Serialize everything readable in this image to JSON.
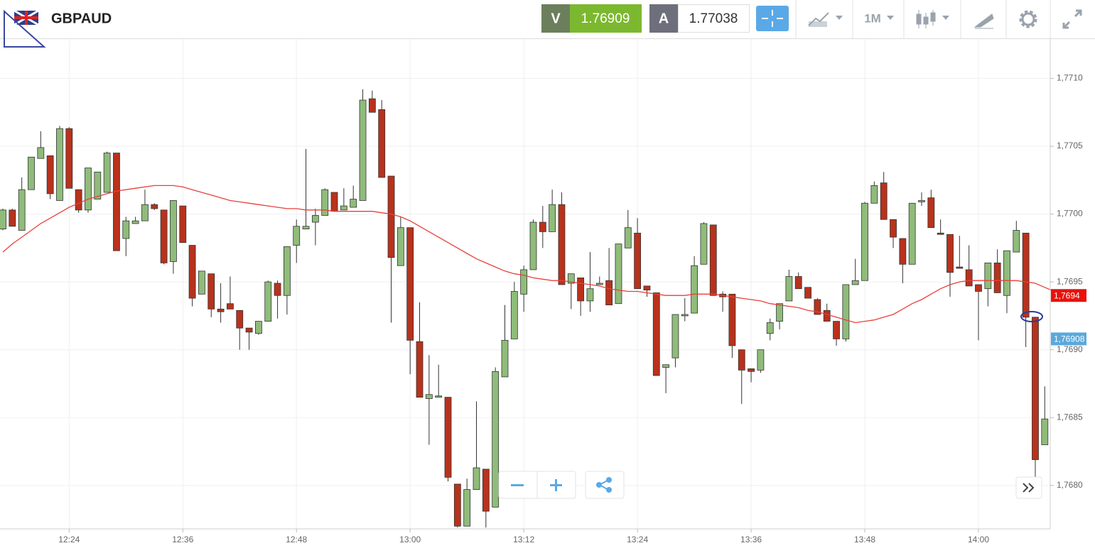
{
  "toolbar": {
    "symbol": "GBPAUD",
    "bid_label": "V",
    "bid": "1.76909",
    "ask_label": "A",
    "ask": "1.77038",
    "timeframe": "1M"
  },
  "chart_data": {
    "type": "candlestick",
    "categories": [
      null,
      null,
      null,
      null,
      null,
      null,
      null,
      "12:24",
      null,
      null,
      null,
      null,
      null,
      null,
      null,
      null,
      null,
      null,
      null,
      "12:36",
      null,
      null,
      null,
      null,
      null,
      null,
      null,
      null,
      null,
      null,
      null,
      "12:48",
      null,
      null,
      null,
      null,
      null,
      null,
      null,
      null,
      null,
      null,
      null,
      "13:00",
      null,
      null,
      null,
      null,
      null,
      null,
      null,
      null,
      null,
      null,
      null,
      "13:12",
      null,
      null,
      null,
      null,
      null,
      null,
      null,
      null,
      null,
      null,
      null,
      "13:24",
      null,
      null,
      null,
      null,
      null,
      null,
      null,
      null,
      null,
      null,
      null,
      "13:36",
      null,
      null,
      null,
      null,
      null,
      null,
      null,
      null,
      null,
      null,
      null,
      "13:48",
      null,
      null,
      null,
      null,
      null,
      null,
      null,
      null,
      null,
      null,
      null,
      "14:00",
      null,
      null,
      null,
      null,
      null,
      null,
      null
    ],
    "open": [
      1.76989,
      1.77003,
      1.76988,
      1.77018,
      1.77041,
      1.77043,
      1.7701,
      1.77063,
      1.77018,
      1.77003,
      1.77011,
      1.77016,
      1.77045,
      1.76982,
      1.76993,
      1.76995,
      1.77007,
      1.77003,
      1.76965,
      1.77006,
      1.76977,
      1.76941,
      1.76956,
      1.7693,
      1.76934,
      1.76929,
      1.76916,
      1.76912,
      1.76921,
      1.76949,
      1.7694,
      1.76977,
      1.76989,
      1.76994,
      1.76999,
      1.77016,
      1.77003,
      1.77005,
      1.7701,
      1.77085,
      1.77077,
      1.77028,
      1.76962,
      1.7699,
      1.76906,
      1.76864,
      1.76865,
      1.76865,
      1.76801,
      1.7677,
      1.76797,
      1.76812,
      1.76784,
      1.7688,
      1.76908,
      1.76941,
      1.76959,
      1.76994,
      1.76987,
      1.77007,
      1.76949,
      1.76953,
      1.76936,
      1.76948,
      1.76951,
      1.76934,
      1.76975,
      1.76986,
      1.76947,
      1.76942,
      1.76887,
      1.76894,
      1.76925,
      1.76927,
      1.76963,
      1.76992,
      1.76941,
      1.76941,
      1.769,
      1.76886,
      1.76885,
      1.76912,
      1.76921,
      1.76936,
      1.76954,
      1.76946,
      1.76937,
      1.76929,
      1.76921,
      1.76908,
      1.76948,
      1.76951,
      1.77008,
      1.77023,
      1.76996,
      1.76982,
      1.76963,
      1.77009,
      1.77012,
      1.76986,
      1.76985,
      1.76961,
      1.76959,
      1.76948,
      1.76945,
      1.76964,
      1.7694,
      1.76972,
      1.76986,
      1.76924,
      1.7683
    ],
    "high": [
      1.77004,
      1.77004,
      1.77027,
      1.77042,
      1.77061,
      1.77043,
      1.77065,
      1.77064,
      1.77018,
      1.77034,
      1.77031,
      1.77046,
      1.77045,
      1.76998,
      1.76998,
      1.77018,
      1.77008,
      1.77003,
      1.7701,
      1.77006,
      1.76977,
      1.76958,
      1.76956,
      1.76949,
      1.76954,
      1.76929,
      1.76916,
      1.76921,
      1.76951,
      1.76951,
      1.76976,
      1.76996,
      1.77048,
      1.77004,
      1.77019,
      1.77016,
      1.77019,
      1.77021,
      1.77092,
      1.77091,
      1.77084,
      1.77028,
      1.76998,
      1.7699,
      1.76935,
      1.76896,
      1.76889,
      1.76865,
      1.76801,
      1.76805,
      1.76862,
      1.76812,
      1.76887,
      1.76933,
      1.7695,
      1.76962,
      1.76996,
      1.77006,
      1.77018,
      1.77016,
      1.76956,
      1.76953,
      1.76972,
      1.76954,
      1.76975,
      1.76978,
      1.77003,
      1.76997,
      1.76947,
      1.76942,
      1.76889,
      1.76926,
      1.76938,
      1.76969,
      1.76994,
      1.76992,
      1.76943,
      1.76941,
      1.769,
      1.76886,
      1.769,
      1.76923,
      1.76934,
      1.76959,
      1.76957,
      1.76946,
      1.76938,
      1.76934,
      1.76921,
      1.76948,
      1.76967,
      1.77009,
      1.77024,
      1.77031,
      1.76996,
      1.76982,
      1.77008,
      1.77016,
      1.77018,
      1.76996,
      1.76985,
      1.76984,
      1.76977,
      1.76948,
      1.76964,
      1.76974,
      1.76973,
      1.76995,
      1.76986,
      1.76924,
      1.76873
    ],
    "low": [
      1.76988,
      1.76991,
      1.76988,
      1.77018,
      1.77041,
      1.77011,
      1.7701,
      1.77019,
      1.77001,
      1.77001,
      1.77011,
      1.77016,
      1.76973,
      1.76969,
      1.76993,
      1.76995,
      1.77003,
      1.76963,
      1.76956,
      1.76979,
      1.76932,
      1.76941,
      1.76924,
      1.7692,
      1.7693,
      1.769,
      1.769,
      1.76911,
      1.76921,
      1.76923,
      1.76926,
      1.76964,
      1.76989,
      1.76977,
      1.76999,
      1.77002,
      1.77003,
      1.77005,
      1.7701,
      1.77075,
      1.77027,
      1.7692,
      1.76962,
      1.76882,
      1.76865,
      1.7683,
      1.76865,
      1.76803,
      1.76769,
      1.7677,
      1.76797,
      1.76769,
      1.76784,
      1.7688,
      1.76908,
      1.76928,
      1.76959,
      1.76975,
      1.76987,
      1.76948,
      1.7693,
      1.76925,
      1.76928,
      1.76948,
      1.76933,
      1.76934,
      1.76975,
      1.76945,
      1.76939,
      1.76881,
      1.76868,
      1.76887,
      1.76921,
      1.76927,
      1.76963,
      1.7694,
      1.76928,
      1.76894,
      1.7686,
      1.76876,
      1.76883,
      1.76907,
      1.76915,
      1.76936,
      1.76945,
      1.76938,
      1.76926,
      1.76921,
      1.76903,
      1.76906,
      1.76948,
      1.76951,
      1.77008,
      1.76996,
      1.76975,
      1.76949,
      1.76963,
      1.77006,
      1.7699,
      1.76985,
      1.76939,
      1.7696,
      1.76947,
      1.76907,
      1.76932,
      1.76942,
      1.76927,
      1.76972,
      1.76902,
      1.76792,
      1.7683
    ],
    "close": [
      1.77003,
      1.76991,
      1.77018,
      1.77042,
      1.77049,
      1.77015,
      1.77063,
      1.77019,
      1.77003,
      1.77034,
      1.77031,
      1.77045,
      1.76973,
      1.76995,
      1.76995,
      1.77007,
      1.77004,
      1.76964,
      1.7701,
      1.76979,
      1.76938,
      1.76958,
      1.7693,
      1.76928,
      1.7693,
      1.76916,
      1.76913,
      1.76921,
      1.7695,
      1.7694,
      1.76976,
      1.76991,
      1.76991,
      1.76999,
      1.77018,
      1.77002,
      1.77006,
      1.77011,
      1.77084,
      1.77075,
      1.77027,
      1.76968,
      1.7699,
      1.76907,
      1.76865,
      1.76867,
      1.76866,
      1.76806,
      1.7677,
      1.76797,
      1.76813,
      1.76781,
      1.76884,
      1.76907,
      1.76943,
      1.76959,
      1.76994,
      1.76987,
      1.77007,
      1.76948,
      1.76956,
      1.76936,
      1.76945,
      1.76949,
      1.76933,
      1.76978,
      1.7699,
      1.76945,
      1.76944,
      1.76881,
      1.76889,
      1.76926,
      1.76926,
      1.76962,
      1.76993,
      1.7694,
      1.76939,
      1.76903,
      1.76885,
      1.76884,
      1.769,
      1.7692,
      1.76934,
      1.76954,
      1.76945,
      1.76938,
      1.76926,
      1.76921,
      1.76908,
      1.76948,
      1.76951,
      1.77008,
      1.77021,
      1.76996,
      1.76983,
      1.76963,
      1.77008,
      1.7701,
      1.7699,
      1.76985,
      1.76957,
      1.7696,
      1.76947,
      1.76943,
      1.76964,
      1.76942,
      1.76973,
      1.76988,
      1.76924,
      1.76819,
      1.76849
    ],
    "up_color": "#8fbc7a",
    "down_color": "#b8321c",
    "moving_average": {
      "color": "#e8413a",
      "values": [
        1.76972,
        1.76978,
        1.76983,
        1.76988,
        1.76993,
        1.76997,
        1.77001,
        1.77005,
        1.77008,
        1.77011,
        1.77013,
        1.77015,
        1.77017,
        1.77018,
        1.77019,
        1.7702,
        1.77021,
        1.77021,
        1.77021,
        1.7702,
        1.77018,
        1.77016,
        1.77014,
        1.77012,
        1.7701,
        1.77009,
        1.77008,
        1.77007,
        1.77006,
        1.77005,
        1.77004,
        1.77004,
        1.77003,
        1.77003,
        1.77003,
        1.77002,
        1.77002,
        1.77002,
        1.77002,
        1.77002,
        1.77001,
        1.77,
        1.76998,
        1.76995,
        1.76991,
        1.76987,
        1.76983,
        1.76979,
        1.76975,
        1.76971,
        1.76967,
        1.76964,
        1.76961,
        1.76958,
        1.76956,
        1.76955,
        1.76953,
        1.76952,
        1.76951,
        1.76951,
        1.7695,
        1.76949,
        1.76948,
        1.76947,
        1.76945,
        1.76944,
        1.76943,
        1.76943,
        1.76942,
        1.76941,
        1.7694,
        1.7694,
        1.7694,
        1.76941,
        1.76941,
        1.76941,
        1.7694,
        1.76939,
        1.76938,
        1.76937,
        1.76936,
        1.76934,
        1.76933,
        1.76932,
        1.76931,
        1.76929,
        1.76928,
        1.76926,
        1.76924,
        1.76922,
        1.7692,
        1.76921,
        1.76922,
        1.76924,
        1.76926,
        1.7693,
        1.76934,
        1.76937,
        1.76941,
        1.76945,
        1.76948,
        1.7695,
        1.76951,
        1.76951,
        1.76951,
        1.76951,
        1.76951,
        1.76951,
        1.7695,
        1.76949,
        1.76946,
        1.76943
      ]
    },
    "ylim": [
      1.76768,
      1.77129
    ],
    "yticks": [
      {
        "value": 1.768,
        "label": "1,7680"
      },
      {
        "value": 1.7685,
        "label": "1,7685"
      },
      {
        "value": 1.769,
        "label": "1,7690"
      },
      {
        "value": 1.7695,
        "label": "1,7695"
      },
      {
        "value": 1.77,
        "label": "1,7700"
      },
      {
        "value": 1.7705,
        "label": "1,7705"
      },
      {
        "value": 1.771,
        "label": "1,7710"
      }
    ],
    "price_tags": [
      {
        "value": 1.7694,
        "label": "1,7694",
        "color": "#e8120c"
      },
      {
        "value": 1.76908,
        "label": "1,76908",
        "color": "#5aa9dc"
      }
    ],
    "grid": true
  }
}
